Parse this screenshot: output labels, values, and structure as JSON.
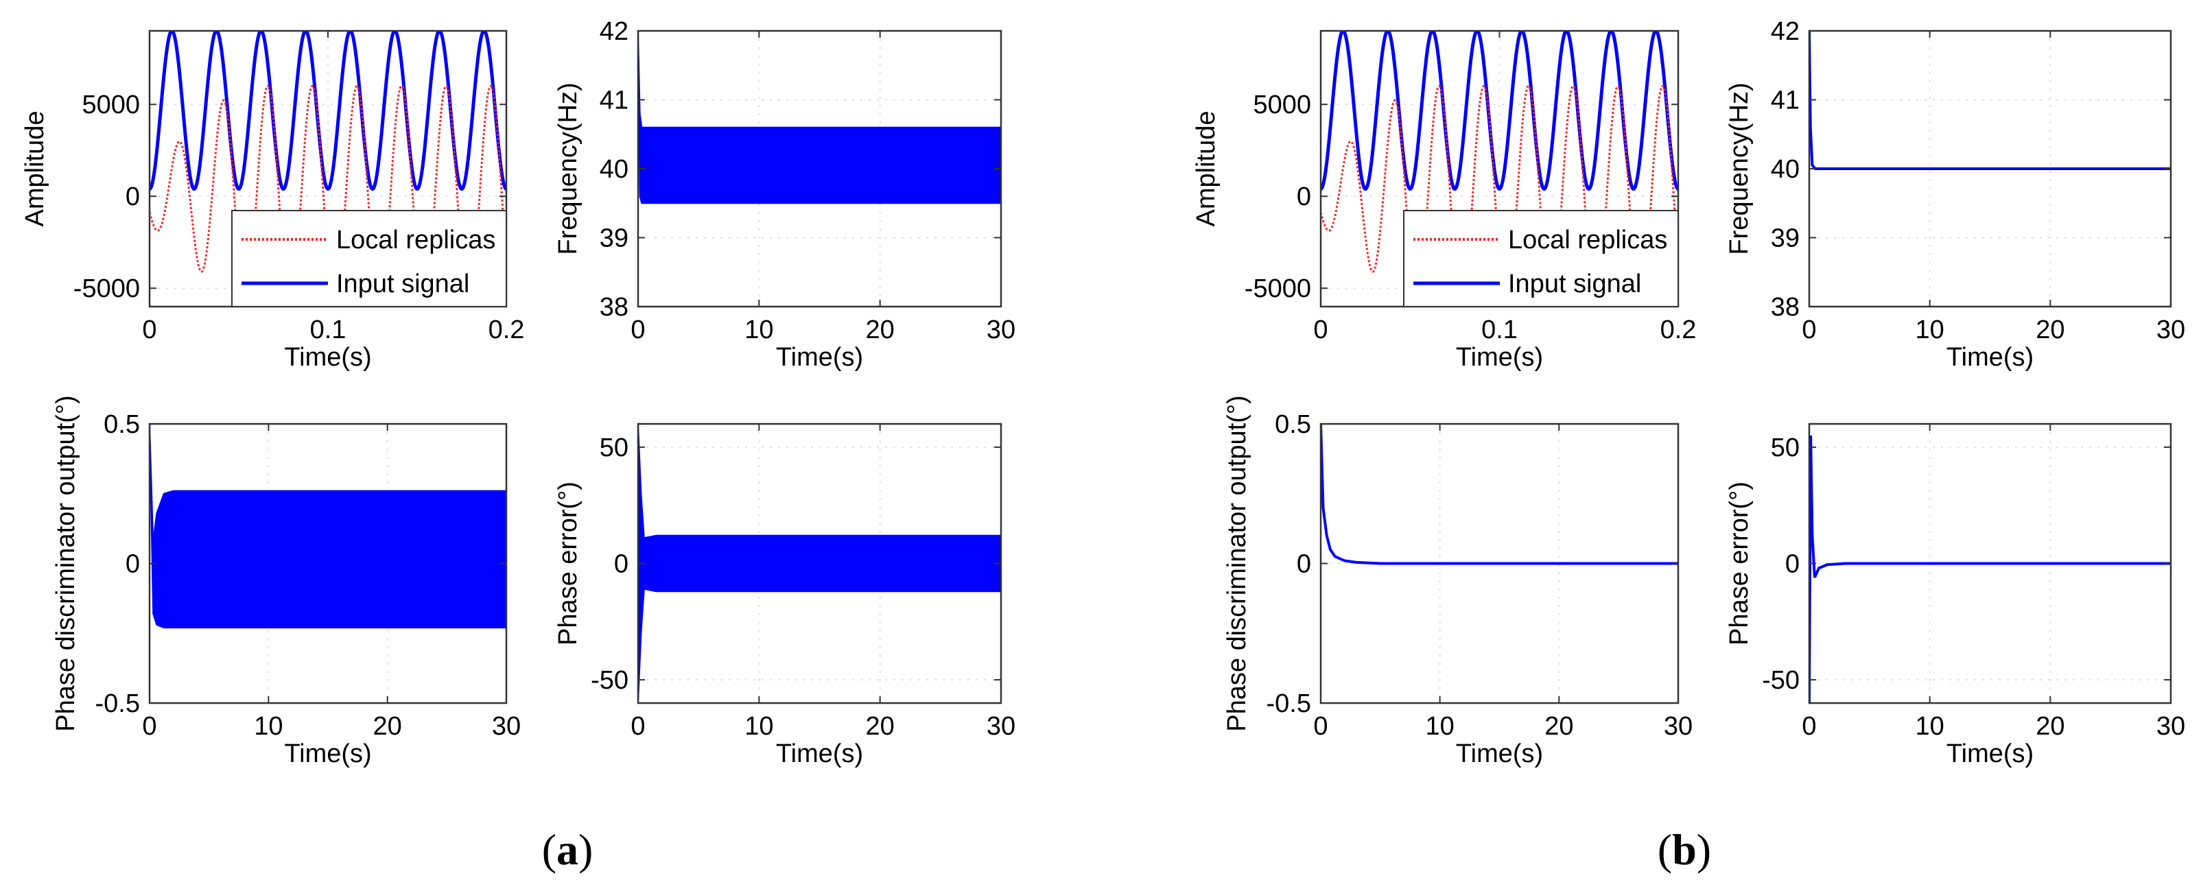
{
  "figure": {
    "panel_labels": [
      {
        "open": "(",
        "letter": "a",
        "close": ")"
      },
      {
        "open": "(",
        "letter": "b",
        "close": ")"
      }
    ],
    "colors": {
      "input": "#0000ff",
      "replica": "#ff2020",
      "fill": "#0000ff"
    }
  },
  "chart_data": [
    {
      "id": "a-amplitude",
      "group": "a",
      "type": "line",
      "xlabel": "Time(s)",
      "ylabel": "Amplitude",
      "xlim": [
        0,
        0.2
      ],
      "ylim": [
        -6000,
        9000
      ],
      "xticks": [
        0,
        0.1,
        0.2
      ],
      "xtick_labels": [
        "0",
        "0.1",
        "0.2"
      ],
      "yticks": [
        -5000,
        0,
        5000
      ],
      "ytick_labels": [
        "-5000",
        "0",
        "5000"
      ],
      "legend": {
        "position": "bottom-right",
        "entries": [
          "Local replicas",
          "Input signal"
        ]
      },
      "series": [
        {
          "name": "Input signal",
          "kind": "sine",
          "style": "solid",
          "color": "#0000ff",
          "frequency_hz": 40,
          "center": 4700,
          "amplitude": 4300,
          "phase_cycles": 0
        },
        {
          "name": "Local replicas",
          "kind": "sine_growing",
          "style": "dotted",
          "color": "#ff2020",
          "frequency_hz": 40,
          "center": 0,
          "amplitude": 6000,
          "start_amplitude": 1500,
          "settle_s": 0.05,
          "phase_cycles": -0.15
        }
      ]
    },
    {
      "id": "a-frequency",
      "group": "a",
      "type": "area",
      "xlabel": "Time(s)",
      "ylabel": "Frequency(Hz)",
      "xlim": [
        0,
        30
      ],
      "ylim": [
        38,
        42
      ],
      "xticks": [
        0,
        10,
        20,
        30
      ],
      "xtick_labels": [
        "0",
        "10",
        "20",
        "30"
      ],
      "yticks": [
        38,
        39,
        40,
        41,
        42
      ],
      "ytick_labels": [
        "38",
        "39",
        "40",
        "41",
        "42"
      ],
      "series": [
        {
          "name": "Frequency",
          "color": "#0000ff",
          "upper": [
            [
              0,
              42
            ],
            [
              0.15,
              40.8
            ],
            [
              0.3,
              40.6
            ],
            [
              30,
              40.6
            ]
          ],
          "lower": [
            [
              0,
              42
            ],
            [
              0.15,
              39.6
            ],
            [
              0.3,
              39.5
            ],
            [
              30,
              39.5
            ]
          ]
        }
      ]
    },
    {
      "id": "a-discriminator",
      "group": "a",
      "type": "area",
      "xlabel": "Time(s)",
      "ylabel": "Phase discriminator output(°)",
      "xlim": [
        0,
        30
      ],
      "ylim": [
        -0.5,
        0.5
      ],
      "xticks": [
        0,
        10,
        20,
        30
      ],
      "xtick_labels": [
        "0",
        "10",
        "20",
        "30"
      ],
      "yticks": [
        -0.5,
        0,
        0.5
      ],
      "ytick_labels": [
        "-0.5",
        "0",
        "0.5"
      ],
      "series": [
        {
          "name": "Discriminator output",
          "color": "#0000ff",
          "upper": [
            [
              0,
              0.5
            ],
            [
              0.3,
              0.08
            ],
            [
              0.6,
              0.18
            ],
            [
              1.2,
              0.25
            ],
            [
              2,
              0.26
            ],
            [
              30,
              0.26
            ]
          ],
          "lower": [
            [
              0,
              0.5
            ],
            [
              0.3,
              -0.18
            ],
            [
              0.6,
              -0.22
            ],
            [
              1.2,
              -0.23
            ],
            [
              30,
              -0.23
            ]
          ]
        }
      ]
    },
    {
      "id": "a-phase-error",
      "group": "a",
      "type": "area",
      "xlabel": "Time(s)",
      "ylabel": "Phase error(°)",
      "xlim": [
        0,
        30
      ],
      "ylim": [
        -60,
        60
      ],
      "xticks": [
        0,
        10,
        20,
        30
      ],
      "xtick_labels": [
        "0",
        "10",
        "20",
        "30"
      ],
      "yticks": [
        -50,
        0,
        50
      ],
      "ytick_labels": [
        "-50",
        "0",
        "50"
      ],
      "series": [
        {
          "name": "Phase error",
          "color": "#0000ff",
          "upper": [
            [
              0,
              60
            ],
            [
              0.25,
              30
            ],
            [
              0.5,
              11
            ],
            [
              1.5,
              12
            ],
            [
              30,
              12
            ]
          ],
          "lower": [
            [
              0,
              -60
            ],
            [
              0.25,
              -30
            ],
            [
              0.5,
              -11
            ],
            [
              1.5,
              -12
            ],
            [
              30,
              -12
            ]
          ]
        }
      ]
    },
    {
      "id": "b-amplitude",
      "group": "b",
      "type": "line",
      "xlabel": "Time(s)",
      "ylabel": "Amplitude",
      "xlim": [
        0,
        0.2
      ],
      "ylim": [
        -6000,
        9000
      ],
      "xticks": [
        0,
        0.1,
        0.2
      ],
      "xtick_labels": [
        "0",
        "0.1",
        "0.2"
      ],
      "yticks": [
        -5000,
        0,
        5000
      ],
      "ytick_labels": [
        "-5000",
        "0",
        "5000"
      ],
      "legend": {
        "position": "bottom-right",
        "entries": [
          "Local replicas",
          "Input signal"
        ]
      },
      "series": [
        {
          "name": "Input signal",
          "kind": "sine",
          "style": "solid",
          "color": "#0000ff",
          "frequency_hz": 40,
          "center": 4700,
          "amplitude": 4300,
          "phase_cycles": 0
        },
        {
          "name": "Local replicas",
          "kind": "sine_growing",
          "style": "dotted",
          "color": "#ff2020",
          "frequency_hz": 40,
          "center": 0,
          "amplitude": 6000,
          "start_amplitude": 1500,
          "settle_s": 0.05,
          "phase_cycles": -0.15
        }
      ]
    },
    {
      "id": "b-frequency",
      "group": "b",
      "type": "line",
      "xlabel": "Time(s)",
      "ylabel": "Frequency(Hz)",
      "xlim": [
        0,
        30
      ],
      "ylim": [
        38,
        42
      ],
      "xticks": [
        0,
        10,
        20,
        30
      ],
      "xtick_labels": [
        "0",
        "10",
        "20",
        "30"
      ],
      "yticks": [
        38,
        39,
        40,
        41,
        42
      ],
      "ytick_labels": [
        "38",
        "39",
        "40",
        "41",
        "42"
      ],
      "series": [
        {
          "name": "Frequency",
          "style": "solid",
          "color": "#0000ff",
          "points": [
            [
              0,
              42
            ],
            [
              0.1,
              40.6
            ],
            [
              0.25,
              40.05
            ],
            [
              0.5,
              40.0
            ],
            [
              30,
              40.0
            ]
          ]
        }
      ]
    },
    {
      "id": "b-discriminator",
      "group": "b",
      "type": "line",
      "xlabel": "Time(s)",
      "ylabel": "Phase discriminator output(°)",
      "xlim": [
        0,
        30
      ],
      "ylim": [
        -0.5,
        0.5
      ],
      "xticks": [
        0,
        10,
        20,
        30
      ],
      "xtick_labels": [
        "0",
        "10",
        "20",
        "30"
      ],
      "yticks": [
        -0.5,
        0,
        0.5
      ],
      "ytick_labels": [
        "-0.5",
        "0",
        "0.5"
      ],
      "series": [
        {
          "name": "Discriminator output",
          "style": "solid",
          "color": "#0000ff",
          "points": [
            [
              0,
              0.5
            ],
            [
              0.2,
              0.2
            ],
            [
              0.5,
              0.1
            ],
            [
              0.8,
              0.05
            ],
            [
              1.2,
              0.025
            ],
            [
              2,
              0.01
            ],
            [
              3,
              0.004
            ],
            [
              5,
              0.0
            ],
            [
              30,
              0.0
            ]
          ]
        }
      ]
    },
    {
      "id": "b-phase-error",
      "group": "b",
      "type": "line",
      "xlabel": "Time(s)",
      "ylabel": "Phase error(°)",
      "xlim": [
        0,
        30
      ],
      "ylim": [
        -60,
        60
      ],
      "xticks": [
        0,
        10,
        20,
        30
      ],
      "xtick_labels": [
        "0",
        "10",
        "20",
        "30"
      ],
      "yticks": [
        -50,
        0,
        50
      ],
      "ytick_labels": [
        "-50",
        "0",
        "50"
      ],
      "series": [
        {
          "name": "Phase error",
          "style": "solid",
          "color": "#0000ff",
          "points": [
            [
              0,
              -60
            ],
            [
              0.12,
              55
            ],
            [
              0.25,
              12
            ],
            [
              0.45,
              -6
            ],
            [
              0.8,
              -2
            ],
            [
              1.5,
              -0.5
            ],
            [
              3,
              0
            ],
            [
              30,
              0
            ]
          ]
        }
      ]
    }
  ]
}
